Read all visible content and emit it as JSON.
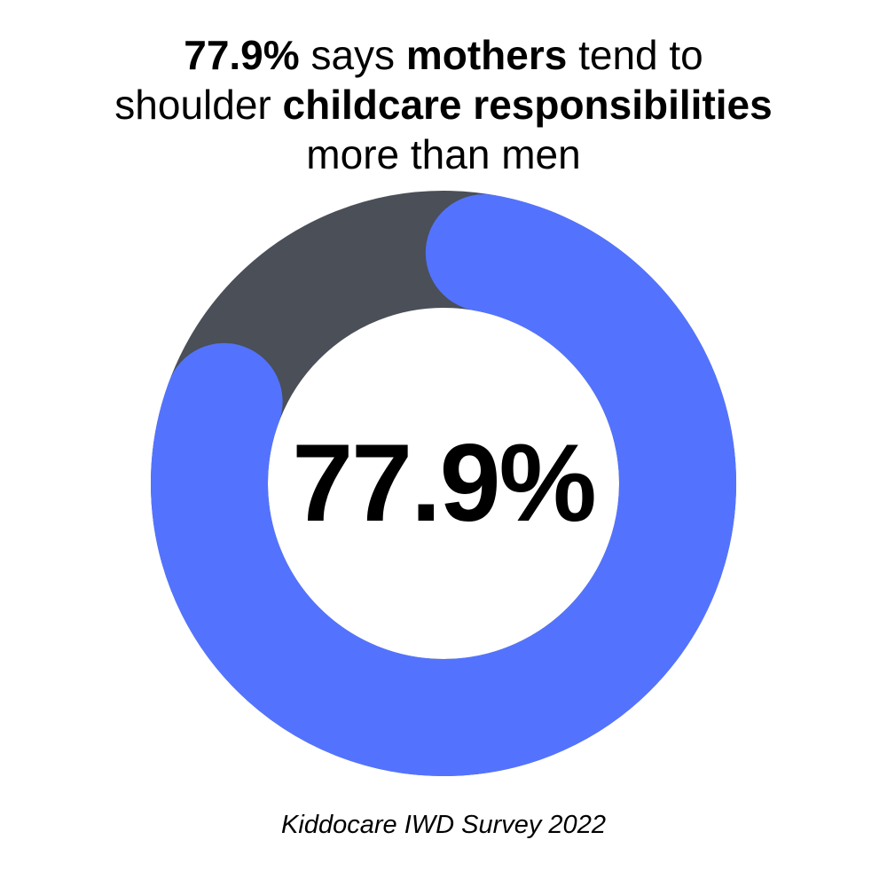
{
  "title": {
    "line1": {
      "bold1": "77.9%",
      "text1": " says ",
      "bold2": "mothers",
      "text2": " tend to"
    },
    "line2": {
      "text1": "shoulder ",
      "bold1": "childcare responsibilities"
    },
    "line3": {
      "text1": "more than men"
    }
  },
  "center_label": "77.9%",
  "source": "Kiddocare IWD Survey 2022",
  "colors": {
    "accent": "#5373FF",
    "remainder": "#4A4F58",
    "background": "#FFFFFF",
    "text": "#000000"
  },
  "chart_data": {
    "type": "pie",
    "donut": true,
    "title": "77.9% says mothers tend to shoulder childcare responsibilities more than men",
    "labels": [
      "",
      ""
    ],
    "values": [
      77.9,
      22.1
    ],
    "colors": [
      "#5373FF",
      "#4A4F58"
    ],
    "center_label": "77.9%",
    "source": "Kiddocare IWD Survey 2022"
  }
}
